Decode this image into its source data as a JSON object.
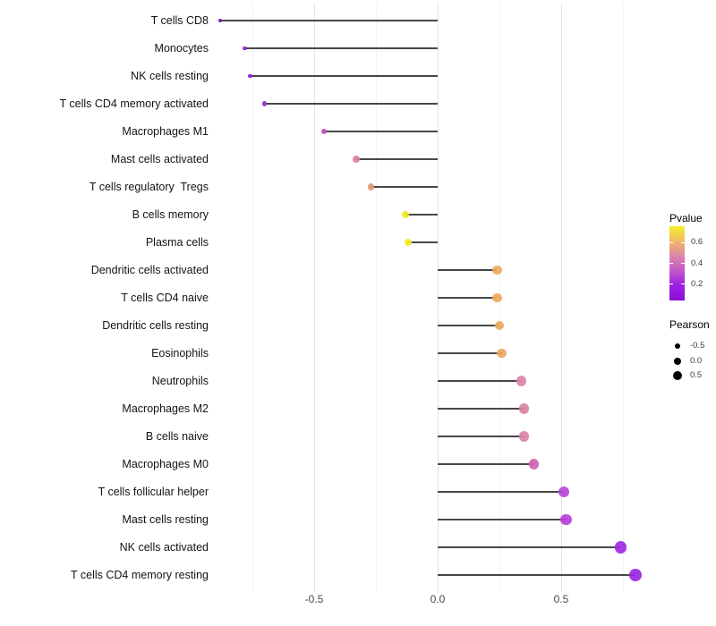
{
  "chart_data": {
    "type": "lollipop",
    "title": "",
    "xlabel": "",
    "ylabel": "",
    "grid": true,
    "xlim": [
      -0.97,
      0.88
    ],
    "x_ticks": [
      {
        "label": "-0.5",
        "value": -0.5
      },
      {
        "label": "0.0",
        "value": 0.0
      },
      {
        "label": "0.5",
        "value": 0.5
      }
    ],
    "x_minor_ticks": [
      -0.75,
      -0.25,
      0.25,
      0.75
    ],
    "series_note": "Pearson correlation per immune cell type; dot color encodes Pvalue, dot size encodes Pearson",
    "rows": [
      {
        "category": "T cells CD8",
        "pearson": -0.88,
        "color": "#7c0fae"
      },
      {
        "category": "Monocytes",
        "pearson": -0.78,
        "color": "#8d1dd1"
      },
      {
        "category": "NK cells resting",
        "pearson": -0.76,
        "color": "#8e1ed2"
      },
      {
        "category": "T cells CD4 memory activated",
        "pearson": -0.7,
        "color": "#9733cf"
      },
      {
        "category": "Macrophages M1",
        "pearson": -0.46,
        "color": "#bb50bf"
      },
      {
        "category": "Mast cells activated",
        "pearson": -0.33,
        "color": "#d9829d"
      },
      {
        "category": "T cells regulatory  Tregs",
        "pearson": -0.27,
        "color": "#e29a77"
      },
      {
        "category": "B cells memory",
        "pearson": -0.13,
        "color": "#f2ea25"
      },
      {
        "category": "Plasma cells",
        "pearson": -0.12,
        "color": "#f2ea25"
      },
      {
        "category": "Dendritic cells activated",
        "pearson": 0.24,
        "color": "#edaa5f"
      },
      {
        "category": "T cells CD4 naive",
        "pearson": 0.24,
        "color": "#edaa5f"
      },
      {
        "category": "Dendritic cells resting",
        "pearson": 0.25,
        "color": "#edaa5f"
      },
      {
        "category": "Eosinophils",
        "pearson": 0.26,
        "color": "#eda75f"
      },
      {
        "category": "Neutrophils",
        "pearson": 0.34,
        "color": "#dc85a8"
      },
      {
        "category": "Macrophages M2",
        "pearson": 0.35,
        "color": "#db82a6"
      },
      {
        "category": "B cells naive",
        "pearson": 0.35,
        "color": "#db82a6"
      },
      {
        "category": "Macrophages M0",
        "pearson": 0.39,
        "color": "#cf63b1"
      },
      {
        "category": "T cells follicular helper",
        "pearson": 0.51,
        "color": "#bb43d8"
      },
      {
        "category": "Mast cells resting",
        "pearson": 0.52,
        "color": "#b941da"
      },
      {
        "category": "NK cells activated",
        "pearson": 0.74,
        "color": "#9d2ae3"
      },
      {
        "category": "T cells CD4 memory resting",
        "pearson": 0.8,
        "color": "#9a26e2"
      }
    ],
    "legend_pvalue": {
      "title": "Pvalue",
      "ticks": [
        {
          "label": "0.6",
          "percent": 22
        },
        {
          "label": "0.4",
          "percent": 50
        },
        {
          "label": "0.2",
          "percent": 78
        }
      ],
      "gradient_top_to_bottom": [
        "#f5ef28",
        "#eeb964",
        "#dd86a8",
        "#c358c9",
        "#9b1fe5",
        "#8d0fd6"
      ]
    },
    "legend_pearson": {
      "title": "Pearson",
      "items": [
        {
          "label": "-0.5",
          "diameter": 6
        },
        {
          "label": "0.0",
          "diameter": 8
        },
        {
          "label": "0.5",
          "diameter": 10.5
        }
      ]
    },
    "stem_color": "#474747"
  }
}
